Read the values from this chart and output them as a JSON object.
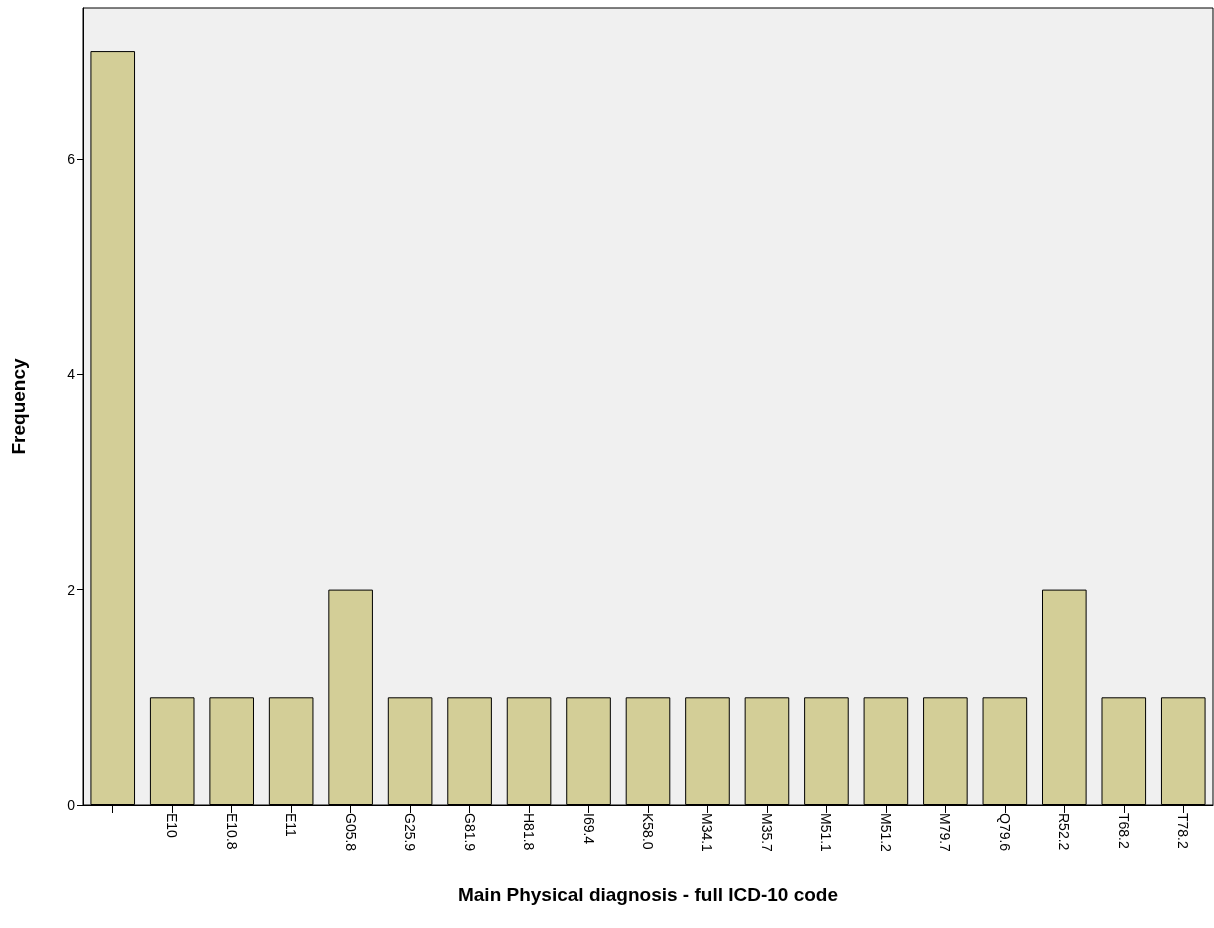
{
  "chart_data": {
    "type": "bar",
    "xlabel": "Main Physical diagnosis - full ICD-10 code",
    "ylabel": "Frequency",
    "categories": [
      null,
      "E10",
      "E10.8",
      "E11",
      "G05.8",
      "G25.9",
      "G81.9",
      "H81.8",
      "I69.4",
      "K58.0",
      "M34.1",
      "M35.7",
      "M51.1",
      "M51.2",
      "M79.7",
      "Q79.6",
      "R52.2",
      "T68.2",
      "T78.2"
    ],
    "values": [
      7,
      1,
      1,
      1,
      2,
      1,
      1,
      1,
      1,
      1,
      1,
      1,
      1,
      1,
      1,
      1,
      2,
      1,
      1
    ],
    "color": "#d3ce97",
    "ylim": [
      0,
      7.4
    ],
    "yticks": [
      0,
      2,
      4,
      6
    ],
    "grid": false
  }
}
